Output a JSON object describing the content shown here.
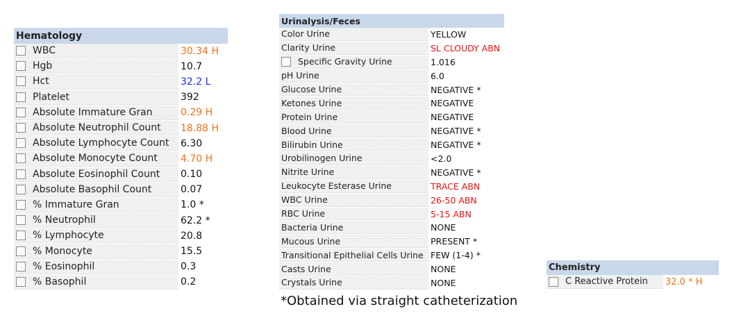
{
  "hematology": {
    "title": "Hematology",
    "checkbox": true,
    "rows": [
      {
        "label": "WBC",
        "value": "30.34 H",
        "color": "#f07018"
      },
      {
        "label": "Hgb",
        "value": "10.7"
      },
      {
        "label": "Hct",
        "value": "32.2 L",
        "color": "#1c2cf0"
      },
      {
        "label": "Platelet",
        "value": "392"
      },
      {
        "label": "Absolute Immature Gran",
        "value": "0.29 H",
        "color": "#f07018"
      },
      {
        "label": "Absolute Neutrophil Count",
        "value": "18.88 H",
        "color": "#f07018"
      },
      {
        "label": "Absolute Lymphocyte Count",
        "value": "6.30"
      },
      {
        "label": "Absolute Monocyte Count",
        "value": "4.70 H",
        "color": "#f07018"
      },
      {
        "label": "Absolute Eosinophil Count",
        "value": "0.10"
      },
      {
        "label": "Absolute Basophil Count",
        "value": "0.07"
      },
      {
        "label": "% Immature Gran",
        "value": "1.0 *"
      },
      {
        "label": "% Neutrophil",
        "value": "62.2 *"
      },
      {
        "label": "% Lymphocyte",
        "value": "20.8"
      },
      {
        "label": "% Monocyte",
        "value": "15.5"
      },
      {
        "label": "% Eosinophil",
        "value": "0.3"
      },
      {
        "label": "% Basophil",
        "value": "0.2"
      }
    ]
  },
  "urinalysis": {
    "title": "Urinalysis/Feces",
    "rows": [
      {
        "label": "Color Urine",
        "value": "YELLOW"
      },
      {
        "label": "Clarity Urine",
        "value": "SL CLOUDY ABN",
        "color": "#e81010"
      },
      {
        "label": "Specific Gravity Urine",
        "value": "1.016",
        "checkbox": true
      },
      {
        "label": "pH Urine",
        "value": "6.0"
      },
      {
        "label": "Glucose Urine",
        "value": "NEGATIVE *"
      },
      {
        "label": "Ketones Urine",
        "value": "NEGATIVE"
      },
      {
        "label": "Protein Urine",
        "value": "NEGATIVE"
      },
      {
        "label": "Blood Urine",
        "value": "NEGATIVE *"
      },
      {
        "label": "Bilirubin Urine",
        "value": "NEGATIVE *"
      },
      {
        "label": "Urobilinogen Urine",
        "value": "<2.0"
      },
      {
        "label": "Nitrite Urine",
        "value": "NEGATIVE *"
      },
      {
        "label": "Leukocyte Esterase Urine",
        "value": "TRACE ABN",
        "color": "#e81010"
      },
      {
        "label": "WBC Urine",
        "value": "26-50 ABN",
        "color": "#e81010"
      },
      {
        "label": "RBC Urine",
        "value": "5-15 ABN",
        "color": "#e81010"
      },
      {
        "label": "Bacteria Urine",
        "value": "NONE"
      },
      {
        "label": "Mucous Urine",
        "value": "PRESENT *"
      },
      {
        "label": "Transitional Epithelial Cells Urine",
        "value": "FEW (1-4) *"
      },
      {
        "label": "Casts Urine",
        "value": "NONE"
      },
      {
        "label": "Crystals Urine",
        "value": "NONE"
      }
    ]
  },
  "chemistry": {
    "title": "Chemistry",
    "checkbox": true,
    "rows": [
      {
        "label": "C Reactive Protein",
        "value": "32.0 * H",
        "color": "#f07018"
      }
    ]
  },
  "footnote": "*Obtained via straight catheterization"
}
